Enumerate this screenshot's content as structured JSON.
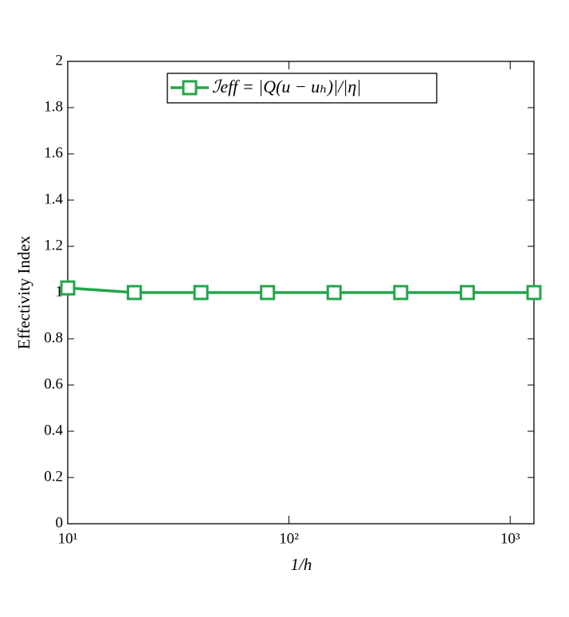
{
  "chart_data": {
    "type": "line",
    "x_label": "1/h",
    "y_label": "Effectivity Index",
    "x": [
      10,
      20,
      40,
      80,
      160,
      320,
      640,
      1280
    ],
    "series": [
      {
        "name": "ℐeff = |Q(u − uₕ)|/|η|",
        "color": "#23a54a",
        "values": [
          1.02,
          1.0,
          1.0,
          1.0,
          1.0,
          1.0,
          1.0,
          1.0
        ]
      }
    ],
    "xlim": [
      10,
      1280
    ],
    "xticks": [
      {
        "value": 10,
        "label": "10¹"
      },
      {
        "value": 100,
        "label": "10²"
      },
      {
        "value": 1000,
        "label": "10³"
      }
    ],
    "xscale": "log",
    "ylim": [
      0,
      2
    ],
    "yticks": [
      0,
      0.2,
      0.4,
      0.6,
      0.8,
      1,
      1.2,
      1.4,
      1.6,
      1.8,
      2
    ],
    "grid": false,
    "legend": "top"
  }
}
